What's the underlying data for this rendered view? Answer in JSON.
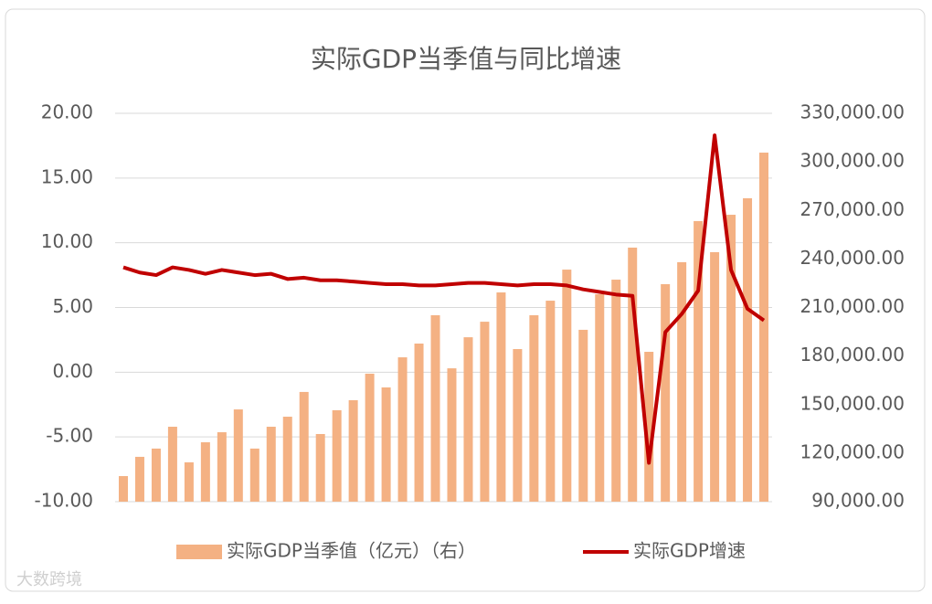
{
  "watermark": "大数跨境",
  "chart_data": {
    "type": "bar-line",
    "title": "实际GDP当季值与同比增速",
    "categories": [
      null,
      null,
      null,
      null,
      null,
      null,
      null,
      null,
      null,
      null,
      null,
      null,
      null,
      null,
      null,
      null,
      null,
      null,
      null,
      null,
      null,
      null,
      null,
      null,
      null,
      null,
      null,
      null,
      null,
      null,
      null,
      null,
      null,
      null,
      null,
      null,
      null,
      null,
      null,
      null
    ],
    "series": [
      {
        "name": "实际GDP当季值（亿元）（右）",
        "type": "bar",
        "axis": "y2",
        "color": "#f4b183",
        "values": [
          105800,
          117700,
          122800,
          136300,
          114300,
          126700,
          132900,
          147000,
          122800,
          136300,
          142500,
          157800,
          131800,
          146500,
          152700,
          169100,
          160600,
          179200,
          187700,
          205200,
          172400,
          191600,
          201200,
          219300,
          184300,
          205200,
          214200,
          233400,
          196200,
          218200,
          227200,
          247000,
          182600,
          224400,
          238000,
          263400,
          244200,
          267300,
          277500,
          305700
        ]
      },
      {
        "name": "实际GDP增速",
        "type": "line",
        "axis": "y",
        "color": "#c00000",
        "values": [
          8.1,
          7.7,
          7.5,
          8.1,
          7.9,
          7.6,
          7.9,
          7.7,
          7.5,
          7.6,
          7.2,
          7.3,
          7.1,
          7.1,
          7.0,
          6.9,
          6.8,
          6.8,
          6.7,
          6.7,
          6.8,
          6.9,
          6.9,
          6.8,
          6.7,
          6.8,
          6.8,
          6.7,
          6.4,
          6.2,
          6.0,
          5.9,
          -7.0,
          3.1,
          4.5,
          6.3,
          18.3,
          7.9,
          4.9,
          4.0
        ]
      }
    ],
    "ylim": [
      -10,
      20
    ],
    "yticks": [
      {
        "value": -10,
        "label": "-10.00"
      },
      {
        "value": -5,
        "label": "-5.00"
      },
      {
        "value": 0,
        "label": "0.00"
      },
      {
        "value": 5,
        "label": "5.00"
      },
      {
        "value": 10,
        "label": "10.00"
      },
      {
        "value": 15,
        "label": "15.00"
      },
      {
        "value": 20,
        "label": "20.00"
      }
    ],
    "y2lim": [
      90000,
      330000
    ],
    "y2ticks": [
      {
        "value": 90000,
        "label": "90,000.00"
      },
      {
        "value": 120000,
        "label": "120,000.00"
      },
      {
        "value": 150000,
        "label": "150,000.00"
      },
      {
        "value": 180000,
        "label": "180,000.00"
      },
      {
        "value": 210000,
        "label": "210,000.00"
      },
      {
        "value": 240000,
        "label": "240,000.00"
      },
      {
        "value": 270000,
        "label": "270,000.00"
      },
      {
        "value": 300000,
        "label": "300,000.00"
      },
      {
        "value": 330000,
        "label": "330,000.00"
      }
    ],
    "grid": true,
    "legend": "bottom"
  }
}
